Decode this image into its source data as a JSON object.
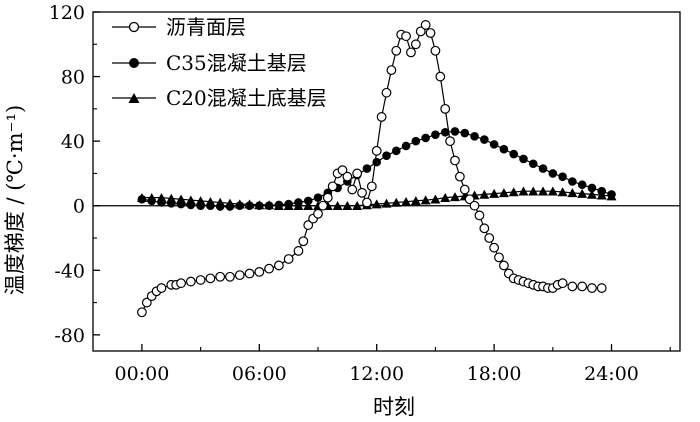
{
  "chart_data": {
    "type": "line",
    "title": "",
    "xlabel": "时刻",
    "ylabel": "温度梯度 / (℃·m⁻¹)",
    "xlim": [
      -2.5,
      27.5
    ],
    "ylim": [
      -90,
      120
    ],
    "xticks": [
      0,
      6,
      12,
      18,
      24
    ],
    "xtick_labels": [
      "00:00",
      "06:00",
      "12:00",
      "18:00",
      "24:00"
    ],
    "yticks": [
      -80,
      -40,
      0,
      40,
      80,
      120
    ],
    "ytick_labels": [
      "-80",
      "-40",
      "0",
      "40",
      "80",
      "120"
    ],
    "zero_line": true,
    "grid": false,
    "legend_position": "top-left",
    "series": [
      {
        "name": "沥青面层",
        "marker": "open-circle",
        "x": [
          0,
          0.25,
          0.5,
          0.75,
          1,
          1.5,
          1.75,
          2,
          2.5,
          3,
          3.5,
          4,
          4.5,
          5,
          5.5,
          6,
          6.5,
          7,
          7.5,
          8,
          8.25,
          8.5,
          8.75,
          9,
          9.25,
          9.5,
          9.75,
          10,
          10.25,
          10.5,
          10.75,
          11,
          11.25,
          11.5,
          11.75,
          12,
          12.25,
          12.5,
          12.75,
          13,
          13.25,
          13.5,
          13.75,
          14,
          14.25,
          14.5,
          14.75,
          15,
          15.25,
          15.5,
          15.75,
          16,
          16.25,
          16.5,
          16.75,
          17,
          17.25,
          17.5,
          17.75,
          18,
          18.25,
          18.5,
          18.75,
          19,
          19.25,
          19.5,
          19.75,
          20,
          20.25,
          20.5,
          20.75,
          21,
          21.25,
          21.5,
          22,
          22.5,
          23,
          23.5
        ],
        "y": [
          -66,
          -60,
          -56,
          -53,
          -51,
          -49,
          -49,
          -48,
          -47,
          -46,
          -45,
          -44,
          -44,
          -43,
          -42,
          -41,
          -39,
          -37,
          -33,
          -28,
          -22,
          -12,
          -8,
          -5,
          0,
          5,
          12,
          20,
          22,
          18,
          10,
          20,
          8,
          2,
          12,
          34,
          55,
          70,
          84,
          96,
          106,
          105,
          95,
          100,
          108,
          112,
          107,
          96,
          80,
          60,
          40,
          28,
          18,
          10,
          4,
          0,
          -6,
          -14,
          -20,
          -26,
          -32,
          -37,
          -42,
          -45,
          -46,
          -47,
          -48,
          -49,
          -50,
          -50,
          -51,
          -51,
          -49,
          -48,
          -50,
          -50,
          -51,
          -51
        ]
      },
      {
        "name": "C35混凝土基层",
        "marker": "filled-circle",
        "x": [
          0,
          0.5,
          1,
          1.5,
          2,
          2.5,
          3,
          3.5,
          4,
          4.5,
          5,
          5.5,
          6,
          6.5,
          7,
          7.5,
          8,
          8.5,
          9,
          9.5,
          10,
          10.5,
          11,
          11.5,
          12,
          12.5,
          13,
          13.5,
          14,
          14.5,
          15,
          15.5,
          16,
          16.5,
          17,
          17.5,
          18,
          18.5,
          19,
          19.5,
          20,
          20.5,
          21,
          21.5,
          22,
          22.5,
          23,
          23.5,
          24
        ],
        "y": [
          4,
          3,
          2,
          1.5,
          1,
          0.5,
          0,
          0,
          -0.5,
          -0.5,
          0,
          0,
          0,
          0,
          0.5,
          1,
          2,
          3,
          5,
          8,
          11,
          15,
          19,
          23,
          27,
          31,
          34,
          37,
          40,
          42,
          44,
          45.5,
          46,
          45,
          43,
          41,
          38,
          35,
          32,
          29,
          26,
          23,
          20,
          18,
          15,
          13,
          11,
          9,
          7
        ]
      },
      {
        "name": "C20混凝土底基层",
        "marker": "filled-triangle",
        "x": [
          0,
          0.5,
          1,
          1.5,
          2,
          2.5,
          3,
          3.5,
          4,
          4.5,
          5,
          5.5,
          6,
          6.5,
          7,
          7.5,
          8,
          8.5,
          9,
          9.5,
          10,
          10.5,
          11,
          11.5,
          12,
          12.5,
          13,
          13.5,
          14,
          14.5,
          15,
          15.5,
          16,
          16.5,
          17,
          17.5,
          18,
          18.5,
          19,
          19.5,
          20,
          20.5,
          21,
          21.5,
          22,
          22.5,
          23,
          23.5,
          24
        ],
        "y": [
          5,
          5,
          5,
          4.5,
          4,
          3.5,
          3,
          2.5,
          2,
          1.5,
          1,
          1,
          0.5,
          0.5,
          0,
          0,
          0,
          0,
          0,
          0,
          0,
          0,
          0,
          0.5,
          1,
          1.5,
          2,
          2.5,
          3,
          3.5,
          4,
          5,
          5.5,
          6,
          6.5,
          7,
          7.5,
          8,
          8.5,
          9,
          9,
          9,
          9,
          8.5,
          8,
          7.5,
          7,
          6.5,
          6
        ]
      }
    ]
  }
}
